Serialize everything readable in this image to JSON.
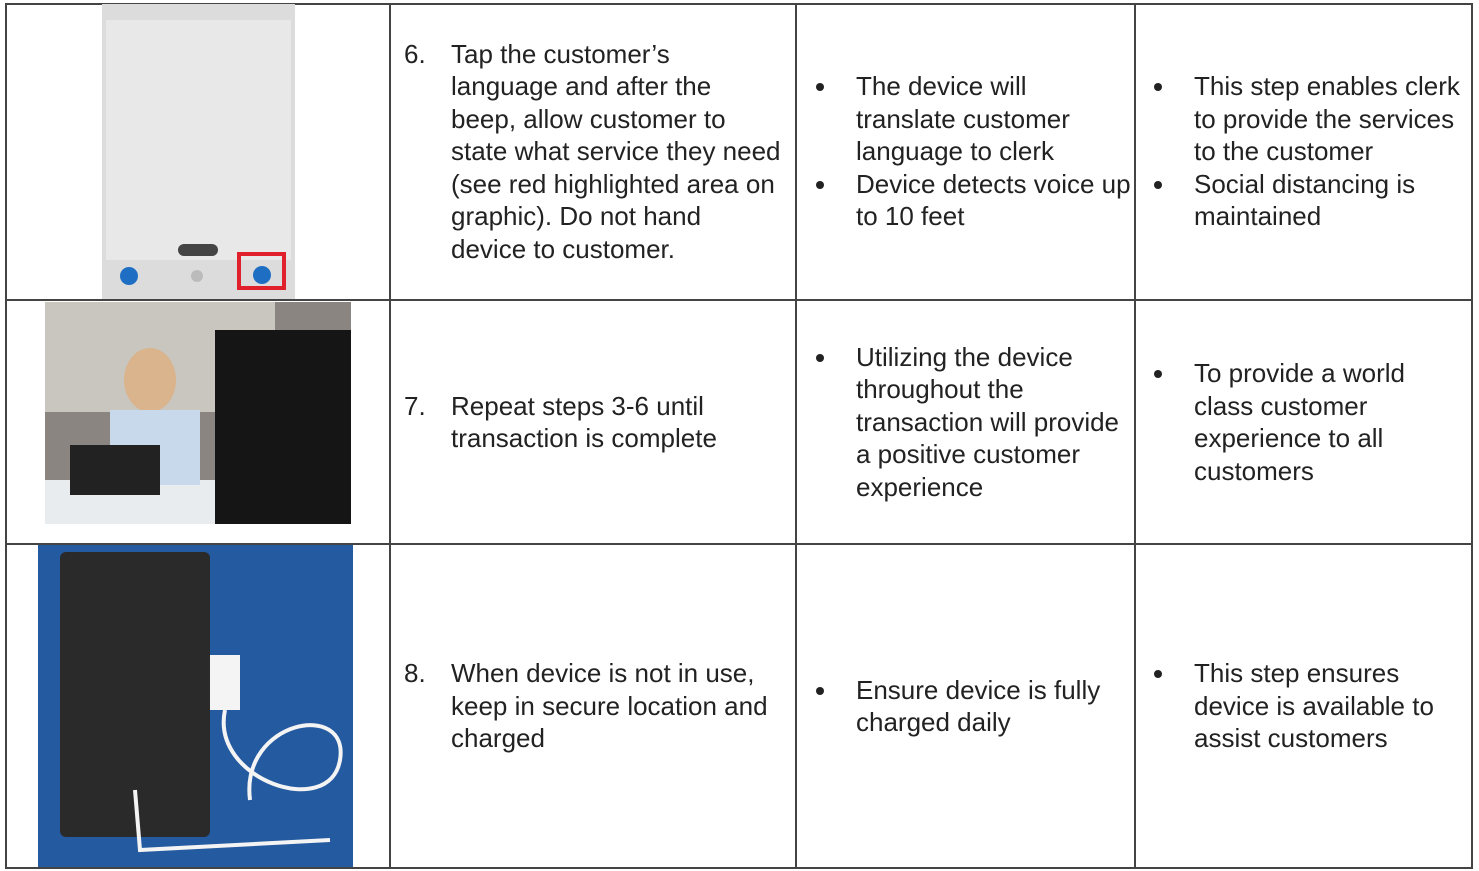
{
  "table": {
    "rows": [
      {
        "number": "6.",
        "step": "Tap the customer’s language and after the beep, allow customer to state what service they need (see red highlighted area on graphic). Do not hand device to customer.",
        "effects": [
          "The device will translate customer language to clerk",
          "Device detects voice up to 10 feet"
        ],
        "purpose": [
          "This step enables clerk to provide the services to the customer",
          "Social distancing is maintained"
        ]
      },
      {
        "number": "7.",
        "step": "Repeat steps 3-6 until transaction is complete",
        "effects": [
          "Utilizing the device throughout the transaction will provide a positive customer experience"
        ],
        "purpose": [
          "To provide a world class customer experience to all customers"
        ]
      },
      {
        "number": "8.",
        "step": "When device is not in use, keep in secure location and charged",
        "effects": [
          "Ensure device is fully charged daily"
        ],
        "purpose": [
          "This step ensures device is available to assist customers"
        ]
      }
    ]
  }
}
